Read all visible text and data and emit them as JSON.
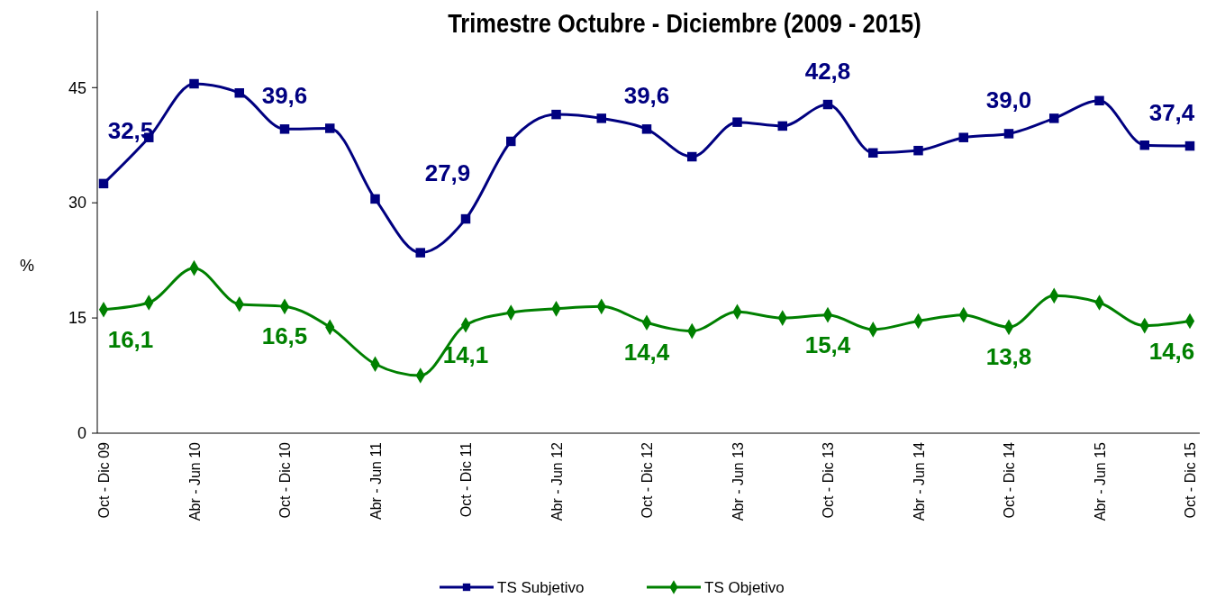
{
  "chart_data": {
    "type": "line",
    "title": "Trimestre Octubre - Diciembre (2009 - 2015)",
    "ylabel": "%",
    "categories": [
      "Oct - Dic 09",
      null,
      "Abr - Jun 10",
      null,
      "Oct - Dic 10",
      null,
      "Abr - Jun 11",
      null,
      "Oct - Dic 11",
      null,
      "Abr - Jun 12",
      null,
      "Oct - Dic 12",
      null,
      "Abr - Jun 13",
      null,
      "Oct - Dic 13",
      null,
      "Abr - Jun 14",
      null,
      "Oct - Dic 14",
      null,
      "Abr - Jun 15",
      null,
      "Oct - Dic 15"
    ],
    "series": [
      {
        "name": "TS Subjetivo",
        "color": "#000080",
        "marker": "square",
        "values": [
          32.5,
          38.5,
          45.5,
          44.3,
          39.6,
          39.7,
          30.5,
          23.5,
          27.9,
          38,
          41.5,
          41,
          39.6,
          36,
          40.5,
          40,
          42.8,
          36.5,
          36.8,
          38.5,
          39.0,
          41,
          43.3,
          37.5,
          37.4
        ],
        "value_labels": [
          "32,5",
          null,
          null,
          null,
          "39,6",
          null,
          null,
          null,
          "27,9",
          null,
          null,
          null,
          "39,6",
          null,
          null,
          null,
          "42,8",
          null,
          null,
          null,
          "39,0",
          null,
          null,
          null,
          "37,4"
        ]
      },
      {
        "name": "TS Objetivo",
        "color": "#008000",
        "marker": "diamond",
        "values": [
          16.1,
          17,
          21.5,
          16.8,
          16.5,
          13.8,
          9,
          7.5,
          14.1,
          15.7,
          16.2,
          16.5,
          14.4,
          13.3,
          15.8,
          15,
          15.4,
          13.5,
          14.6,
          15.4,
          13.8,
          17.9,
          17,
          14,
          14.6
        ],
        "value_labels": [
          "16,1",
          null,
          null,
          null,
          "16,5",
          null,
          null,
          null,
          "14,1",
          null,
          null,
          null,
          "14,4",
          null,
          null,
          null,
          "15,4",
          null,
          null,
          null,
          "13,8",
          null,
          null,
          null,
          "14,6"
        ]
      }
    ],
    "ylim": [
      0,
      55
    ],
    "yticks": [
      0,
      15,
      30,
      45
    ],
    "legend": "bottom",
    "line_style": "solid"
  }
}
